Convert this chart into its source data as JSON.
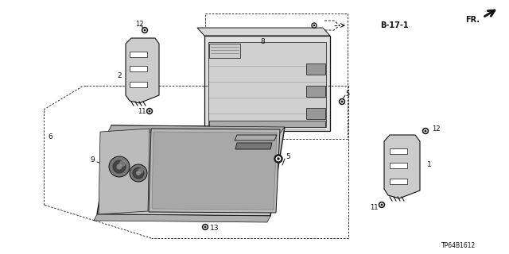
{
  "bg": "#ffffff",
  "dark": "#111111",
  "gray": "#666666",
  "lgray": "#cccccc",
  "mgray": "#999999",
  "dcode": "TP64B1612",
  "ref": "B-17-1",
  "figsize": [
    6.4,
    3.2
  ],
  "dpi": 100
}
